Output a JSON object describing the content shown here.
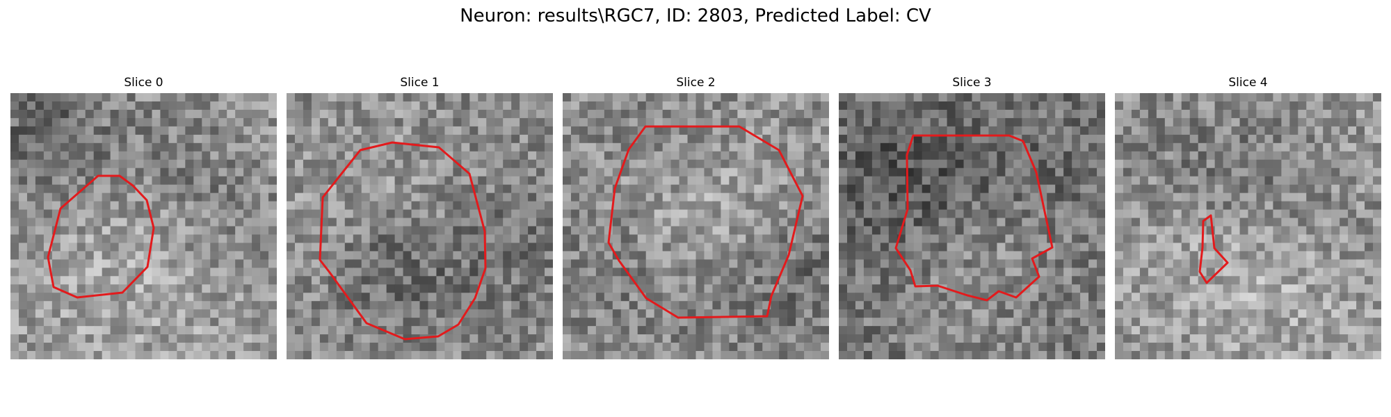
{
  "figure": {
    "title": "Neuron: results\\RGC7, ID: 2803, Predicted Label: CV"
  },
  "panels": [
    {
      "title": "Slice 0"
    },
    {
      "title": "Slice 1"
    },
    {
      "title": "Slice 2"
    },
    {
      "title": "Slice 3"
    },
    {
      "title": "Slice 4"
    }
  ],
  "colors": {
    "contour": "#e31a1c",
    "background": "#ffffff"
  }
}
